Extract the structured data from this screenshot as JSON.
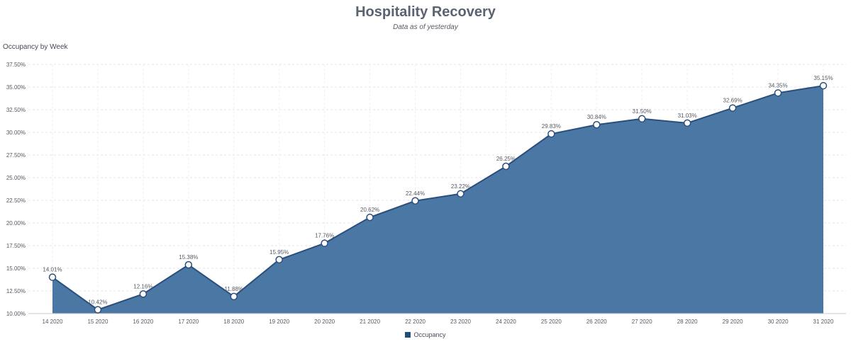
{
  "chart_data": {
    "type": "area",
    "title": "Hospitality Recovery",
    "subtitle": "Data as of yesterday",
    "ylabel": "Occupancy by Week",
    "xlabel": "",
    "categories": [
      "14 2020",
      "15 2020",
      "16 2020",
      "17 2020",
      "18 2020",
      "19 2020",
      "20 2020",
      "21 2020",
      "22 2020",
      "23 2020",
      "24 2020",
      "25 2020",
      "26 2020",
      "27 2020",
      "28 2020",
      "29 2020",
      "30 2020",
      "31 2020"
    ],
    "series": [
      {
        "name": "Occupancy",
        "values": [
          14.01,
          10.42,
          12.16,
          15.38,
          11.88,
          15.95,
          17.76,
          20.62,
          22.44,
          23.22,
          26.25,
          29.83,
          30.84,
          31.5,
          31.03,
          32.69,
          34.35,
          35.15
        ],
        "labels": [
          "14.01%",
          "10.42%",
          "12.16%",
          "15.38%",
          "11.88%",
          "15.95%",
          "17.76%",
          "20.62%",
          "22.44%",
          "23.22%",
          "26.25%",
          "29.83%",
          "30.84%",
          "31.50%",
          "31.03%",
          "32.69%",
          "34.35%",
          "35.15%"
        ]
      }
    ],
    "ylim": [
      10,
      37.5
    ],
    "yticks": [
      "10.00%",
      "12.50%",
      "15.00%",
      "17.50%",
      "20.00%",
      "22.50%",
      "25.00%",
      "27.50%",
      "30.00%",
      "32.50%",
      "35.00%",
      "37.50%"
    ],
    "grid": true,
    "legend_position": "bottom-center",
    "colors": {
      "area": "#4b77a4",
      "line": "#2a4f7c",
      "marker_fill": "#ffffff",
      "legend": "#1f4e79"
    }
  }
}
